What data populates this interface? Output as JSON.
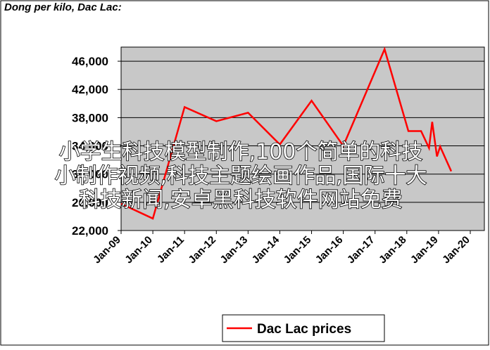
{
  "chart_data": {
    "type": "line",
    "title": "Dong per kilo, Dac Lac:",
    "xlim": [
      2009,
      2020
    ],
    "xticks": [
      {
        "value": 2009,
        "label": "Jan-09"
      },
      {
        "value": 2010,
        "label": "Jan-10"
      },
      {
        "value": 2011,
        "label": "Jan-11"
      },
      {
        "value": 2012,
        "label": "Jan-12"
      },
      {
        "value": 2013,
        "label": "Jan-13"
      },
      {
        "value": 2014,
        "label": "Jan-14"
      },
      {
        "value": 2015,
        "label": "Jan-15"
      },
      {
        "value": 2016,
        "label": "Jan-16"
      },
      {
        "value": 2017,
        "label": "Jan-17"
      },
      {
        "value": 2018,
        "label": "Jan-18"
      },
      {
        "value": 2019,
        "label": "Jan-19"
      },
      {
        "value": 2020,
        "label": "Jan-20"
      }
    ],
    "ylim": [
      22000,
      48000
    ],
    "yticks": [
      {
        "value": 22000,
        "label": "22,000"
      },
      {
        "value": 26000,
        "label": "26,000"
      },
      {
        "value": 30000,
        "label": "30,000"
      },
      {
        "value": 34000,
        "label": "34,000"
      },
      {
        "value": 38000,
        "label": "38,000"
      },
      {
        "value": 42000,
        "label": "42,000"
      },
      {
        "value": 46000,
        "label": "46,000"
      }
    ],
    "grid": true,
    "legend": "bottom",
    "x": [
      2009.0,
      2010.0,
      2011.0,
      2012.0,
      2013.0,
      2014.0,
      2015.0,
      2016.0,
      2017.3,
      2018.05,
      2018.45,
      2018.7,
      2018.8,
      2018.95,
      2019.05,
      2019.4
    ],
    "series": [
      {
        "name": "Dac Lac prices",
        "color": "#ff0000",
        "values": [
          25800,
          23700,
          39500,
          37500,
          38700,
          34200,
          40400,
          34000,
          47700,
          36100,
          36100,
          33700,
          37400,
          32500,
          33900,
          30400
        ]
      }
    ]
  },
  "overlay_text": [
    "小学生科技模型制作,100个简单的科技",
    "小制作视频,科技主题绘画作品,国际十大",
    "科技新闻,安卓黑科技软件网站免费"
  ]
}
